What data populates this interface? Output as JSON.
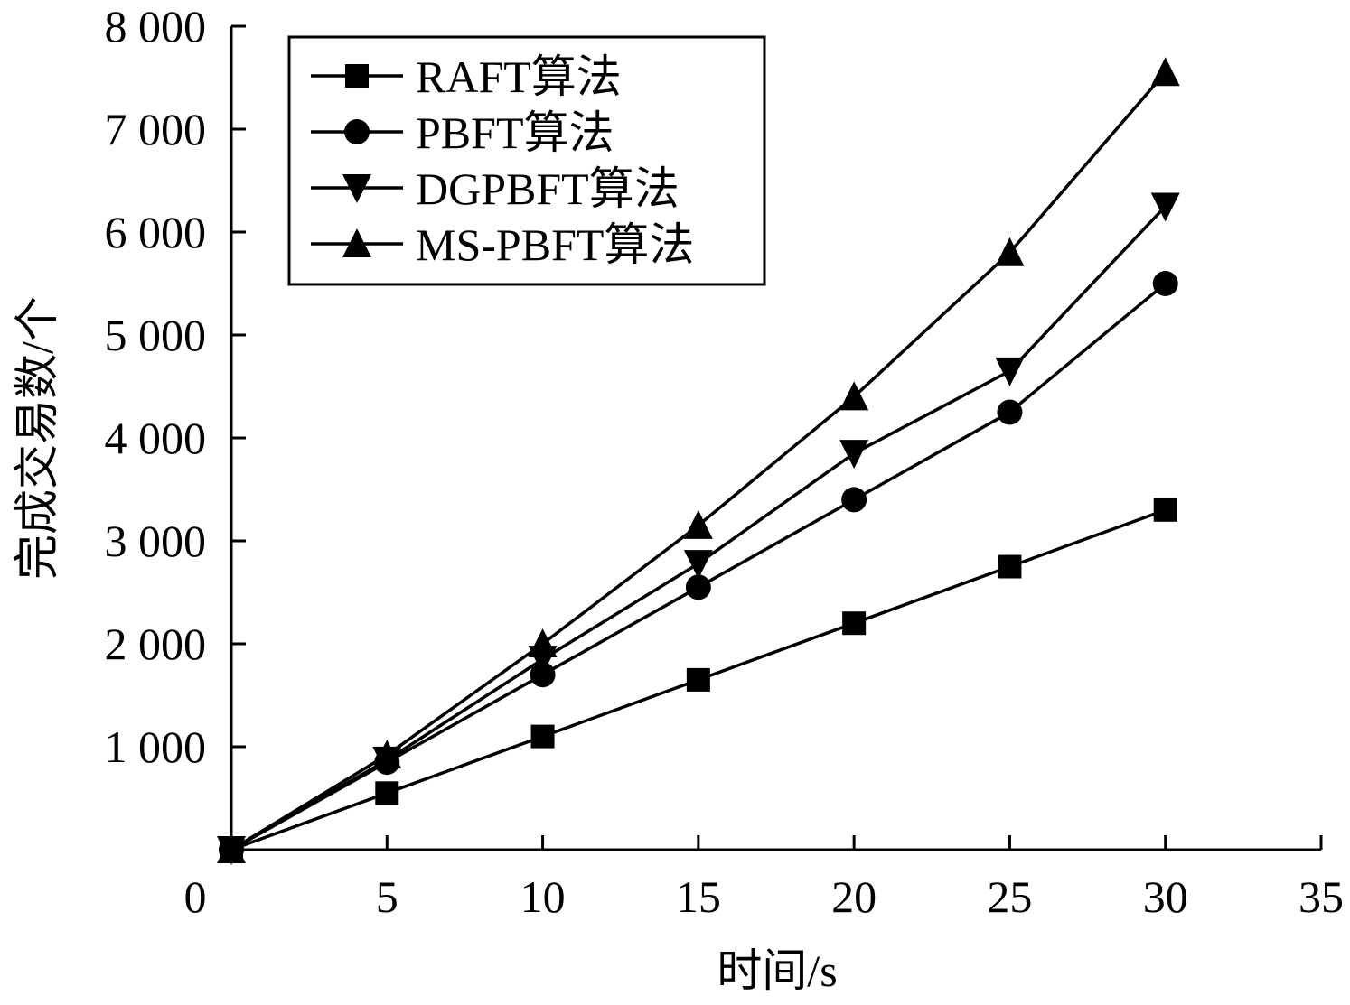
{
  "chart_data": {
    "type": "line",
    "xlabel": "时间/s",
    "ylabel": "完成交易数/个",
    "xlim": [
      0,
      35
    ],
    "ylim": [
      0,
      8000
    ],
    "x_ticks": [
      0,
      5,
      10,
      15,
      20,
      25,
      30,
      35
    ],
    "x_tick_labels": [
      "0",
      "5",
      "10",
      "15",
      "20",
      "25",
      "30",
      "35"
    ],
    "y_ticks": [
      1000,
      2000,
      3000,
      4000,
      5000,
      6000,
      7000,
      8000
    ],
    "y_tick_labels": [
      "1 000",
      "2 000",
      "3 000",
      "4 000",
      "5 000",
      "6 000",
      "7 000",
      "8 000"
    ],
    "grid": false,
    "legend_position": "top-left",
    "x": [
      0,
      5,
      10,
      15,
      20,
      25,
      30
    ],
    "series": [
      {
        "name": "RAFT算法",
        "marker": "square",
        "values": [
          0,
          550,
          1100,
          1650,
          2200,
          2750,
          3300
        ]
      },
      {
        "name": "PBFT算法",
        "marker": "circle",
        "values": [
          0,
          850,
          1700,
          2550,
          3400,
          4250,
          5500
        ]
      },
      {
        "name": "DGPBFT算法",
        "marker": "triangle-down",
        "values": [
          0,
          870,
          1850,
          2780,
          3850,
          4650,
          6250
        ]
      },
      {
        "name": "MS-PBFT算法",
        "marker": "triangle-up",
        "values": [
          0,
          920,
          2000,
          3150,
          4400,
          5800,
          7550
        ]
      }
    ]
  }
}
